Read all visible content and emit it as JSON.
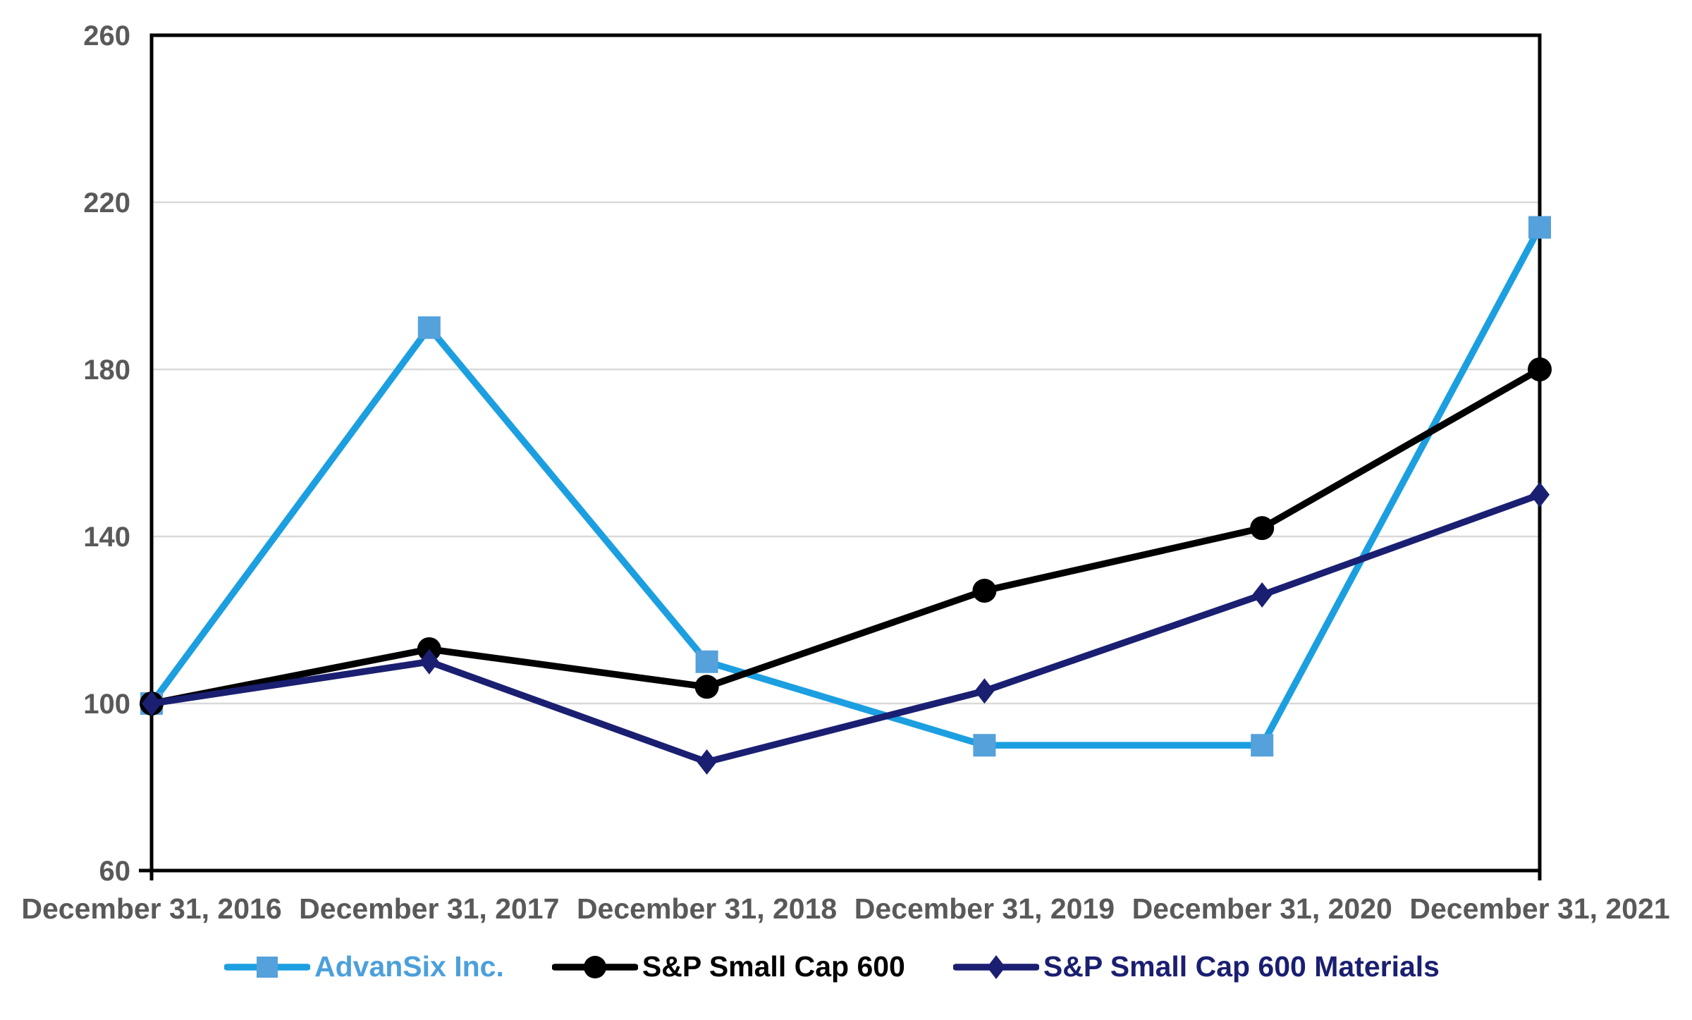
{
  "page": {
    "background_color": "#ffffff"
  },
  "chart_data": {
    "type": "line",
    "title": "",
    "xlabel": "",
    "ylabel": "",
    "x": [
      "December 31, 2016",
      "December 31, 2017",
      "December 31, 2018",
      "December 31, 2019",
      "December 31, 2020",
      "December 31, 2021"
    ],
    "series": [
      {
        "name": "AdvanSix Inc.",
        "values": [
          100,
          190,
          110,
          90,
          90,
          214
        ],
        "line_color": "#1C9FE0",
        "marker_color": "#55A1DB",
        "marker": "square",
        "label_color": "#4BA0DC"
      },
      {
        "name": "S&P Small Cap 600",
        "values": [
          100,
          113,
          104,
          127,
          142,
          180
        ],
        "line_color": "#000000",
        "marker_color": "#000000",
        "marker": "circle",
        "label_color": "#000000"
      },
      {
        "name": "S&P Small Cap 600 Materials",
        "values": [
          100,
          110,
          86,
          103,
          126,
          150
        ],
        "line_color": "#1A1F71",
        "marker_color": "#1A1F71",
        "marker": "diamond",
        "label_color": "#1A1F71"
      }
    ],
    "ylim": [
      60,
      260
    ],
    "yticks": [
      60,
      100,
      140,
      180,
      220,
      260
    ],
    "grid": true,
    "gridline_color": "#D9D9D9",
    "plot_border_color": "#000000",
    "axis_label_color": "#595959",
    "legend_position": "bottom"
  }
}
